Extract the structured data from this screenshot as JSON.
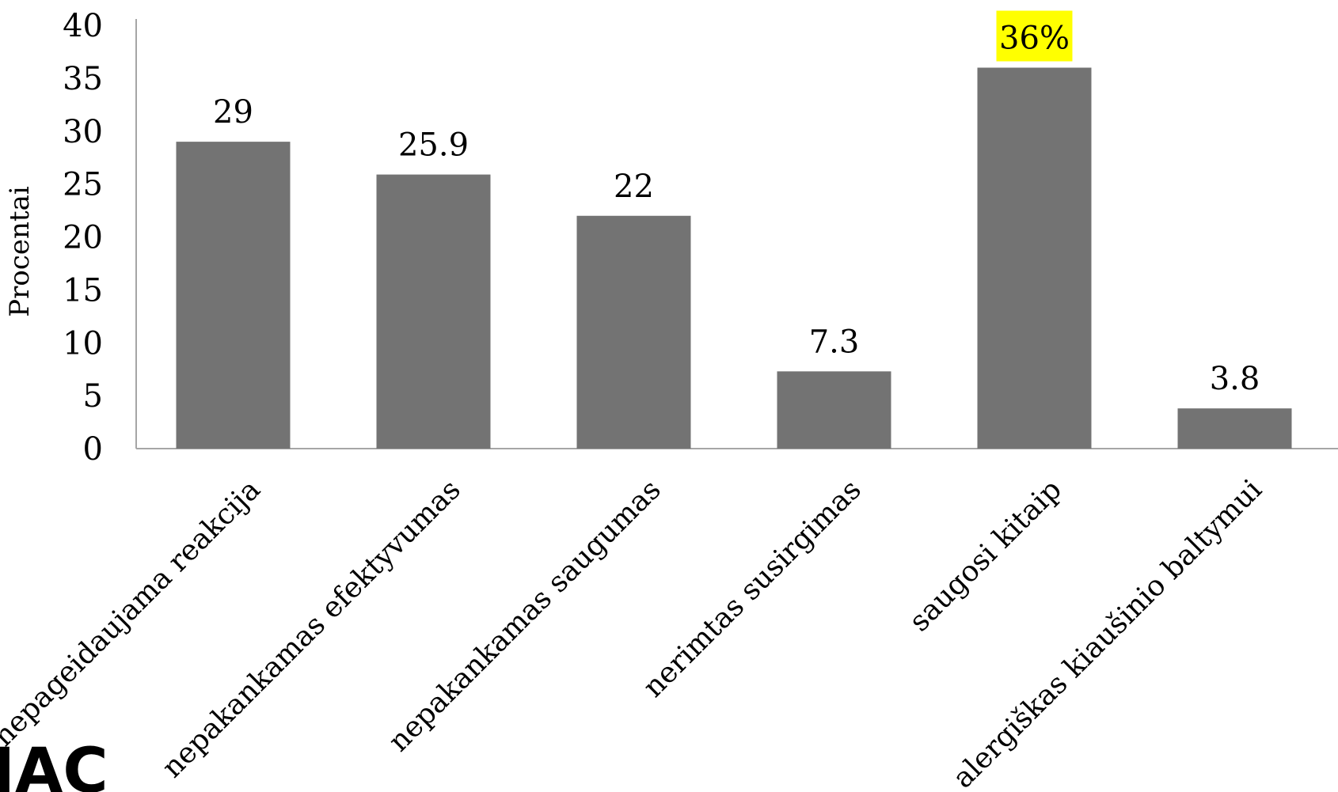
{
  "chart_data": {
    "type": "bar",
    "categories": [
      "nepageidaujama reakcija",
      "nepakankamas efektyvumas",
      "nepakankamas saugumas",
      "nerimtas susirgimas",
      "saugosi kitaip",
      "alergiškas kiaušinio baltymui"
    ],
    "values": [
      29,
      25.9,
      22,
      7.3,
      36,
      3.8
    ],
    "data_labels": [
      "29",
      "25.9",
      "22",
      "7.3",
      "36%",
      "3.8"
    ],
    "highlight_index": 4,
    "ylabel": "Procentai",
    "ylim": [
      0,
      40
    ],
    "yticks": [
      0,
      5,
      10,
      15,
      20,
      25,
      30,
      35,
      40
    ],
    "grid": false,
    "legend": "none",
    "colors": {
      "bar": "#737373",
      "axis": "#a6a6a6",
      "highlight": "#ffff00",
      "logo": "#2a5b5b"
    }
  },
  "logo": {
    "text": "IAC"
  }
}
